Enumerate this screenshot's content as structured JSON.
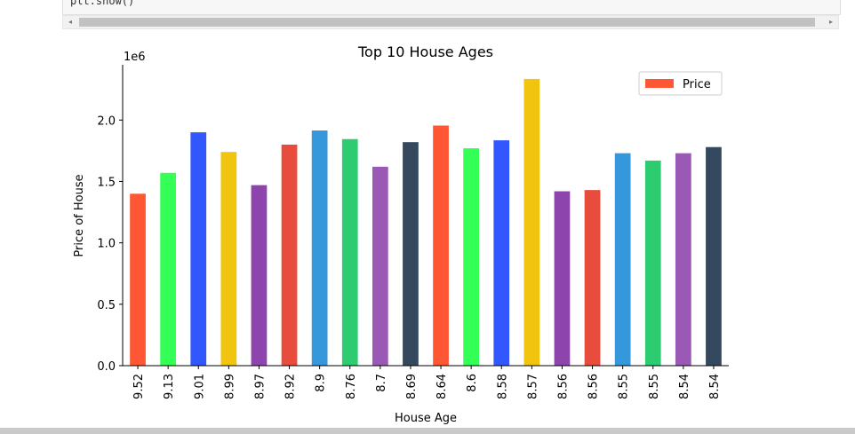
{
  "notebook": {
    "code_line": "plt.show()",
    "scroll_left_glyph": "◂",
    "scroll_right_glyph": "▸"
  },
  "chart_data": {
    "type": "bar",
    "title": "Top 10 House Ages",
    "xlabel": "House Age",
    "ylabel": "Price of House",
    "y_offset_label": "1e6",
    "categories": [
      "9.52",
      "9.13",
      "9.01",
      "8.99",
      "8.97",
      "8.92",
      "8.9",
      "8.76",
      "8.7",
      "8.69",
      "8.64",
      "8.6",
      "8.58",
      "8.57",
      "8.56",
      "8.56",
      "8.55",
      "8.55",
      "8.54",
      "8.54"
    ],
    "series": [
      {
        "name": "Price",
        "values": [
          1400000,
          1570000,
          1900000,
          1740000,
          1470000,
          1800000,
          1915000,
          1845000,
          1620000,
          1820000,
          1955000,
          1770000,
          1835000,
          2335000,
          1420000,
          1430000,
          1730000,
          1670000,
          1730000,
          1780000
        ]
      }
    ],
    "bar_colors": [
      "#FF5733",
      "#33FF57",
      "#3357FF",
      "#F1C40F",
      "#8E44AD",
      "#E74C3C",
      "#3498DB",
      "#2ECC71",
      "#9B59B6",
      "#34495E",
      "#FF5733",
      "#33FF57",
      "#3357FF",
      "#F1C40F",
      "#8E44AD",
      "#E74C3C",
      "#3498DB",
      "#2ECC71",
      "#9B59B6",
      "#34495E"
    ],
    "legend_color": "#FF5733",
    "ylim": [
      0,
      2450000
    ],
    "yticks": [
      0,
      500000,
      1000000,
      1500000,
      2000000
    ],
    "ytick_labels": [
      "0.0",
      "0.5",
      "1.0",
      "1.5",
      "2.0"
    ],
    "grid": false,
    "legend_position": "top-right"
  }
}
